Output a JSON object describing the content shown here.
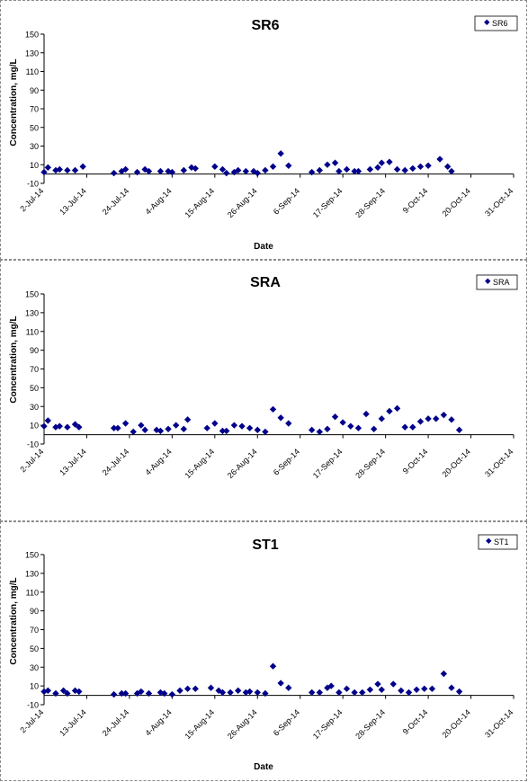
{
  "charts": [
    {
      "title": "SR6",
      "legend": "SR6"
    },
    {
      "title": "SRA",
      "legend": "SRA"
    },
    {
      "title": "ST1",
      "legend": "ST1"
    }
  ],
  "chart_data": [
    {
      "type": "scatter",
      "title": "SR6",
      "xlabel": "Date",
      "ylabel": "Concentration, mg/L",
      "x_ticks": [
        "2-Jul-14",
        "13-Jul-14",
        "24-Jul-14",
        "4-Aug-14",
        "15-Aug-14",
        "26-Aug-14",
        "6-Sep-14",
        "17-Sep-14",
        "28-Sep-14",
        "9-Oct-14",
        "20-Oct-14",
        "31-Oct-14"
      ],
      "y_ticks": [
        -10,
        10,
        30,
        50,
        70,
        90,
        110,
        130,
        150
      ],
      "xlim": [
        "2014-07-02",
        "2014-10-31"
      ],
      "ylim": [
        -10,
        150
      ],
      "grid": false,
      "legend_position": "top-right",
      "marker_color": "#00008b",
      "series": [
        {
          "name": "SR6",
          "points": [
            [
              "2014-07-02",
              2
            ],
            [
              "2014-07-03",
              7
            ],
            [
              "2014-07-05",
              4
            ],
            [
              "2014-07-06",
              5
            ],
            [
              "2014-07-08",
              4
            ],
            [
              "2014-07-10",
              4
            ],
            [
              "2014-07-12",
              8
            ],
            [
              "2014-07-20",
              1
            ],
            [
              "2014-07-22",
              3
            ],
            [
              "2014-07-23",
              5
            ],
            [
              "2014-07-26",
              2
            ],
            [
              "2014-07-28",
              5
            ],
            [
              "2014-07-29",
              3
            ],
            [
              "2014-08-01",
              3
            ],
            [
              "2014-08-03",
              3
            ],
            [
              "2014-08-04",
              2
            ],
            [
              "2014-08-07",
              4
            ],
            [
              "2014-08-09",
              7
            ],
            [
              "2014-08-10",
              6
            ],
            [
              "2014-08-15",
              8
            ],
            [
              "2014-08-17",
              5
            ],
            [
              "2014-08-18",
              1
            ],
            [
              "2014-08-20",
              2
            ],
            [
              "2014-08-21",
              4
            ],
            [
              "2014-08-23",
              3
            ],
            [
              "2014-08-25",
              3
            ],
            [
              "2014-08-26",
              1
            ],
            [
              "2014-08-28",
              4
            ],
            [
              "2014-08-30",
              8
            ],
            [
              "2014-09-01",
              22
            ],
            [
              "2014-09-03",
              9
            ],
            [
              "2014-09-09",
              2
            ],
            [
              "2014-09-11",
              4
            ],
            [
              "2014-09-13",
              10
            ],
            [
              "2014-09-15",
              12
            ],
            [
              "2014-09-16",
              3
            ],
            [
              "2014-09-18",
              5
            ],
            [
              "2014-09-20",
              3
            ],
            [
              "2014-09-21",
              3
            ],
            [
              "2014-09-24",
              5
            ],
            [
              "2014-09-26",
              7
            ],
            [
              "2014-09-27",
              12
            ],
            [
              "2014-09-29",
              13
            ],
            [
              "2014-10-01",
              5
            ],
            [
              "2014-10-03",
              4
            ],
            [
              "2014-10-05",
              6
            ],
            [
              "2014-10-07",
              8
            ],
            [
              "2014-10-09",
              9
            ],
            [
              "2014-10-12",
              16
            ],
            [
              "2014-10-14",
              8
            ],
            [
              "2014-10-15",
              3
            ]
          ]
        }
      ]
    },
    {
      "type": "scatter",
      "title": "SRA",
      "xlabel": "",
      "ylabel": "Concentration, mg/L",
      "x_ticks": [
        "2-Jul-14",
        "13-Jul-14",
        "24-Jul-14",
        "4-Aug-14",
        "15-Aug-14",
        "26-Aug-14",
        "6-Sep-14",
        "17-Sep-14",
        "28-Sep-14",
        "9-Oct-14",
        "20-Oct-14",
        "31-Oct-14"
      ],
      "y_ticks": [
        -10,
        10,
        30,
        50,
        70,
        90,
        110,
        130,
        150
      ],
      "xlim": [
        "2014-07-02",
        "2014-10-31"
      ],
      "ylim": [
        -10,
        150
      ],
      "grid": false,
      "legend_position": "top-right",
      "marker_color": "#00008b",
      "series": [
        {
          "name": "SRA",
          "points": [
            [
              "2014-07-02",
              9
            ],
            [
              "2014-07-03",
              15
            ],
            [
              "2014-07-05",
              8
            ],
            [
              "2014-07-06",
              9
            ],
            [
              "2014-07-08",
              8
            ],
            [
              "2014-07-10",
              11
            ],
            [
              "2014-07-11",
              8
            ],
            [
              "2014-07-20",
              7
            ],
            [
              "2014-07-21",
              7
            ],
            [
              "2014-07-23",
              12
            ],
            [
              "2014-07-25",
              3
            ],
            [
              "2014-07-27",
              10
            ],
            [
              "2014-07-28",
              5
            ],
            [
              "2014-07-31",
              5
            ],
            [
              "2014-08-01",
              4
            ],
            [
              "2014-08-03",
              6
            ],
            [
              "2014-08-05",
              10
            ],
            [
              "2014-08-07",
              6
            ],
            [
              "2014-08-08",
              16
            ],
            [
              "2014-08-13",
              7
            ],
            [
              "2014-08-15",
              12
            ],
            [
              "2014-08-17",
              4
            ],
            [
              "2014-08-18",
              4
            ],
            [
              "2014-08-20",
              10
            ],
            [
              "2014-08-22",
              9
            ],
            [
              "2014-08-24",
              7
            ],
            [
              "2014-08-26",
              5
            ],
            [
              "2014-08-28",
              3
            ],
            [
              "2014-08-30",
              27
            ],
            [
              "2014-09-01",
              18
            ],
            [
              "2014-09-03",
              12
            ],
            [
              "2014-09-09",
              5
            ],
            [
              "2014-09-11",
              3
            ],
            [
              "2014-09-13",
              6
            ],
            [
              "2014-09-15",
              19
            ],
            [
              "2014-09-17",
              13
            ],
            [
              "2014-09-19",
              9
            ],
            [
              "2014-09-21",
              7
            ],
            [
              "2014-09-23",
              22
            ],
            [
              "2014-09-25",
              6
            ],
            [
              "2014-09-27",
              17
            ],
            [
              "2014-09-29",
              25
            ],
            [
              "2014-10-01",
              28
            ],
            [
              "2014-10-03",
              8
            ],
            [
              "2014-10-05",
              8
            ],
            [
              "2014-10-07",
              14
            ],
            [
              "2014-10-09",
              17
            ],
            [
              "2014-10-11",
              17
            ],
            [
              "2014-10-13",
              21
            ],
            [
              "2014-10-15",
              16
            ],
            [
              "2014-10-17",
              5
            ]
          ]
        }
      ]
    },
    {
      "type": "scatter",
      "title": "ST1",
      "xlabel": "Date",
      "ylabel": "Concentration, mg/L",
      "x_ticks": [
        "2-Jul-14",
        "13-Jul-14",
        "24-Jul-14",
        "4-Aug-14",
        "15-Aug-14",
        "26-Aug-14",
        "6-Sep-14",
        "17-Sep-14",
        "28-Sep-14",
        "9-Oct-14",
        "20-Oct-14",
        "31-Oct-14"
      ],
      "y_ticks": [
        -10,
        10,
        30,
        50,
        70,
        90,
        110,
        130,
        150
      ],
      "xlim": [
        "2014-07-02",
        "2014-10-31"
      ],
      "ylim": [
        -10,
        150
      ],
      "grid": false,
      "legend_position": "top-right",
      "marker_color": "#00008b",
      "series": [
        {
          "name": "ST1",
          "points": [
            [
              "2014-07-02",
              4
            ],
            [
              "2014-07-03",
              5
            ],
            [
              "2014-07-05",
              2
            ],
            [
              "2014-07-07",
              5
            ],
            [
              "2014-07-08",
              2
            ],
            [
              "2014-07-10",
              5
            ],
            [
              "2014-07-11",
              4
            ],
            [
              "2014-07-20",
              1
            ],
            [
              "2014-07-22",
              2
            ],
            [
              "2014-07-23",
              2
            ],
            [
              "2014-07-26",
              2
            ],
            [
              "2014-07-27",
              4
            ],
            [
              "2014-07-29",
              2
            ],
            [
              "2014-08-01",
              3
            ],
            [
              "2014-08-02",
              2
            ],
            [
              "2014-08-04",
              1
            ],
            [
              "2014-08-06",
              5
            ],
            [
              "2014-08-08",
              7
            ],
            [
              "2014-08-10",
              7
            ],
            [
              "2014-08-14",
              8
            ],
            [
              "2014-08-16",
              5
            ],
            [
              "2014-08-17",
              3
            ],
            [
              "2014-08-19",
              3
            ],
            [
              "2014-08-21",
              5
            ],
            [
              "2014-08-23",
              3
            ],
            [
              "2014-08-24",
              4
            ],
            [
              "2014-08-26",
              3
            ],
            [
              "2014-08-28",
              2
            ],
            [
              "2014-08-30",
              31
            ],
            [
              "2014-09-01",
              13
            ],
            [
              "2014-09-03",
              8
            ],
            [
              "2014-09-09",
              3
            ],
            [
              "2014-09-11",
              3
            ],
            [
              "2014-09-13",
              8
            ],
            [
              "2014-09-14",
              10
            ],
            [
              "2014-09-16",
              3
            ],
            [
              "2014-09-18",
              7
            ],
            [
              "2014-09-20",
              3
            ],
            [
              "2014-09-22",
              3
            ],
            [
              "2014-09-24",
              6
            ],
            [
              "2014-09-26",
              12
            ],
            [
              "2014-09-27",
              6
            ],
            [
              "2014-09-30",
              12
            ],
            [
              "2014-10-02",
              5
            ],
            [
              "2014-10-04",
              3
            ],
            [
              "2014-10-06",
              6
            ],
            [
              "2014-10-08",
              7
            ],
            [
              "2014-10-10",
              7
            ],
            [
              "2014-10-13",
              23
            ],
            [
              "2014-10-15",
              8
            ],
            [
              "2014-10-17",
              4
            ]
          ]
        }
      ]
    }
  ]
}
